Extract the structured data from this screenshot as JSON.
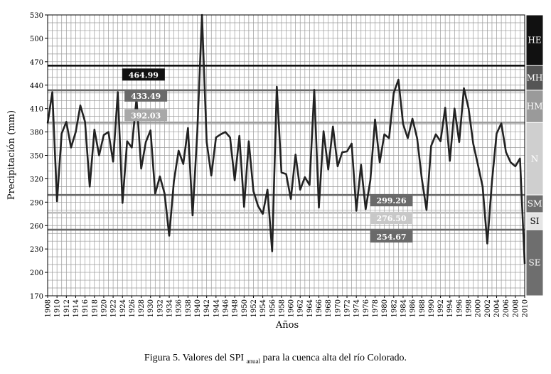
{
  "chart_data": {
    "type": "line",
    "ylabel": "Precipitación (mm)",
    "xlabel": "Años",
    "ylim": [
      170,
      530
    ],
    "yticks": [
      170,
      200,
      230,
      260,
      290,
      320,
      350,
      380,
      410,
      440,
      470,
      500,
      530
    ],
    "xlim": [
      1908,
      2010
    ],
    "xticks": [
      1908,
      1910,
      1912,
      1914,
      1916,
      1918,
      1920,
      1922,
      1924,
      1926,
      1928,
      1930,
      1932,
      1934,
      1936,
      1938,
      1940,
      1942,
      1944,
      1946,
      1948,
      1950,
      1952,
      1954,
      1956,
      1958,
      1960,
      1962,
      1964,
      1966,
      1968,
      1970,
      1972,
      1974,
      1976,
      1978,
      1980,
      1982,
      1984,
      1986,
      1988,
      1990,
      1992,
      1994,
      1996,
      1998,
      2000,
      2002,
      2004,
      2006,
      2008,
      2010
    ],
    "grid": true,
    "series": [
      {
        "color": "#222222",
        "x": [
          1908,
          1909,
          1910,
          1911,
          1912,
          1913,
          1914,
          1915,
          1916,
          1917,
          1918,
          1919,
          1920,
          1921,
          1922,
          1923,
          1924,
          1925,
          1926,
          1927,
          1928,
          1929,
          1930,
          1931,
          1932,
          1933,
          1934,
          1935,
          1936,
          1937,
          1938,
          1939,
          1940,
          1941,
          1942,
          1943,
          1944,
          1945,
          1946,
          1947,
          1948,
          1949,
          1950,
          1951,
          1952,
          1953,
          1954,
          1955,
          1956,
          1957,
          1958,
          1959,
          1960,
          1961,
          1962,
          1963,
          1964,
          1965,
          1966,
          1967,
          1968,
          1969,
          1970,
          1971,
          1972,
          1973,
          1974,
          1975,
          1976,
          1977,
          1978,
          1979,
          1980,
          1981,
          1982,
          1983,
          1984,
          1985,
          1986,
          1987,
          1988,
          1989,
          1990,
          1991,
          1992,
          1993,
          1994,
          1995,
          1996,
          1997,
          1998,
          1999,
          2000,
          2001,
          2002,
          2003,
          2004,
          2005,
          2006,
          2007,
          2008,
          2009,
          2010
        ],
        "y": [
          391,
          431,
          291,
          378,
          393,
          360,
          380,
          414,
          393,
          310,
          383,
          350,
          376,
          380,
          342,
          431,
          289,
          368,
          360,
          423,
          333,
          367,
          382,
          301,
          323,
          301,
          247,
          317,
          356,
          339,
          385,
          273,
          380,
          530,
          367,
          324,
          373,
          377,
          380,
          373,
          318,
          375,
          284,
          368,
          304,
          285,
          275,
          306,
          227,
          438,
          328,
          326,
          294,
          351,
          306,
          322,
          312,
          434,
          283,
          381,
          332,
          387,
          336,
          354,
          355,
          365,
          279,
          338,
          281,
          318,
          396,
          341,
          377,
          372,
          430,
          447,
          390,
          372,
          397,
          372,
          320,
          280,
          362,
          377,
          368,
          411,
          343,
          410,
          367,
          436,
          410,
          365,
          338,
          310,
          237,
          317,
          378,
          391,
          354,
          341,
          336,
          346,
          211
        ]
      }
    ],
    "thresholds": [
      {
        "value": 464.99,
        "label": "464.99",
        "color": "#111111",
        "box": "#111111"
      },
      {
        "value": 433.49,
        "label": "433.49",
        "color": "#6a6a6a",
        "box": "#6a6a6a"
      },
      {
        "value": 392.03,
        "label": "392.03",
        "color": "#9a9a9a",
        "box": "#a8a8a8"
      },
      {
        "value": 299.26,
        "label": "299.26",
        "color": "#6a6a6a",
        "box": "#6a6a6a"
      },
      {
        "value": 276.5,
        "label": "276.50",
        "color": "#bdbdbd",
        "box": "#c8c8c8"
      },
      {
        "value": 254.67,
        "label": "254.67",
        "color": "#6a6a6a",
        "box": "#6a6a6a"
      }
    ],
    "categories_bar": [
      {
        "label": "HE",
        "from": 464.99,
        "to": 530,
        "color": "#111111",
        "text": "#ffffff"
      },
      {
        "label": "MH",
        "from": 433.49,
        "to": 464.99,
        "color": "#555555",
        "text": "#ffffff"
      },
      {
        "label": "HM",
        "from": 392.03,
        "to": 433.49,
        "color": "#9a9a9a",
        "text": "#ffffff"
      },
      {
        "label": "N",
        "from": 299.26,
        "to": 392.03,
        "color": "#cfcfcf",
        "text": "#ffffff"
      },
      {
        "label": "SM",
        "from": 276.5,
        "to": 299.26,
        "color": "#6e6e6e",
        "text": "#ffffff"
      },
      {
        "label": "SI",
        "from": 254.67,
        "to": 276.5,
        "color": "#e5e5e5",
        "text": "#000000"
      },
      {
        "label": "SE",
        "from": 170,
        "to": 254.67,
        "color": "#6e6e6e",
        "text": "#ffffff"
      }
    ]
  },
  "caption": {
    "prefix": "Figura 5. Valores del SPI ",
    "sub": "anual",
    "suffix": " para la cuenca alta del río Colorado."
  }
}
